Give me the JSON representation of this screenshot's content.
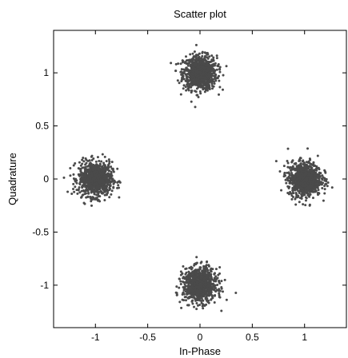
{
  "chart_data": {
    "type": "scatter",
    "title": "Scatter plot",
    "xlabel": "In-Phase",
    "ylabel": "Quadrature",
    "xlim": [
      -1.4,
      1.4
    ],
    "ylim": [
      -1.4,
      1.4
    ],
    "x_ticks": [
      -1,
      -0.5,
      0,
      0.5,
      1
    ],
    "x_tick_labels": [
      "-1",
      "-0.5",
      "0",
      "0.5",
      "1"
    ],
    "y_ticks": [
      1,
      0.5,
      0,
      -0.5,
      -1
    ],
    "y_tick_labels": [
      "1",
      "0.5",
      "0",
      "-0.5",
      "-1"
    ],
    "grid": false,
    "point_color": "#4a4a4a",
    "clusters": [
      {
        "center_x": 0,
        "center_y": 1,
        "spread": 0.08
      },
      {
        "center_x": -1,
        "center_y": 0,
        "spread": 0.08
      },
      {
        "center_x": 1,
        "center_y": 0,
        "spread": 0.08
      },
      {
        "center_x": 0,
        "center_y": -1,
        "spread": 0.08
      }
    ]
  }
}
